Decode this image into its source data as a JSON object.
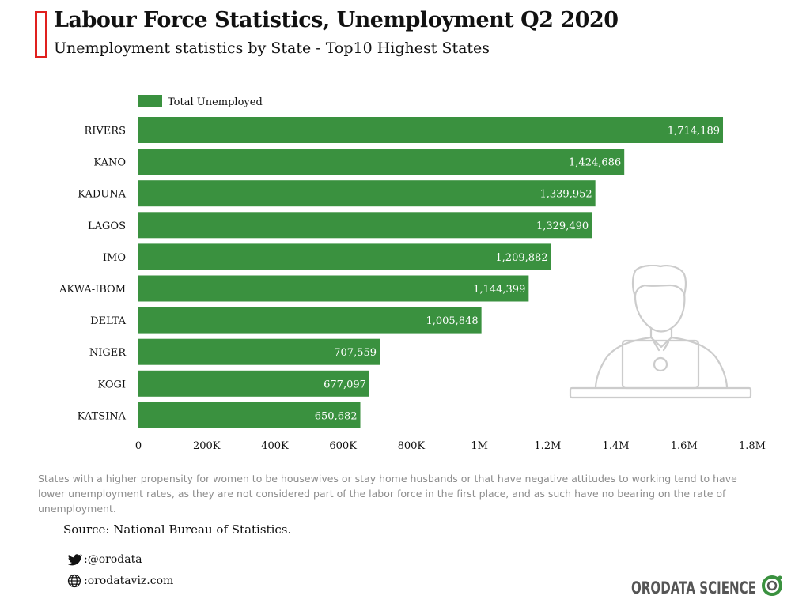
{
  "header": {
    "title": "Labour Force Statistics, Unemployment Q2 2020",
    "subtitle": "Unemployment statistics by State - Top10 Highest States"
  },
  "chart_data": {
    "type": "bar",
    "orientation": "horizontal",
    "categories": [
      "RIVERS",
      "KANO",
      "KADUNA",
      "LAGOS",
      "IMO",
      "AKWA-IBOM",
      "DELTA",
      "NIGER",
      "KOGI",
      "KATSINA"
    ],
    "series": [
      {
        "name": "Total Unemployed",
        "color": "#3a913f",
        "values": [
          1714189,
          1424686,
          1339952,
          1329490,
          1209882,
          1144399,
          1005848,
          707559,
          677097,
          650682
        ],
        "labels": [
          "1,714,189",
          "1,424,686",
          "1,339,952",
          "1,329,490",
          "1,209,882",
          "1,144,399",
          "1,005,848",
          "707,559",
          "677,097",
          "650,682"
        ]
      }
    ],
    "xlim": [
      0,
      1800000
    ],
    "xticks": [
      0,
      200000,
      400000,
      600000,
      800000,
      1000000,
      1200000,
      1400000,
      1600000,
      1800000
    ],
    "xtick_labels": [
      "0",
      "200K",
      "400K",
      "600K",
      "800K",
      "1M",
      "1.2M",
      "1.4M",
      "1.6M",
      "1.8M"
    ],
    "grid": false,
    "legend": "top-left",
    "xlabel": "",
    "ylabel": ""
  },
  "footer": {
    "note": "States with a higher propensity for women to be housewives or stay home husbands or that  have negative attitudes to working tend to have lower unemployment rates, as they are not considered part of the labor force in the first place, and as such have no bearing on the rate of unemployment.",
    "source": "Source: National Bureau of Statistics.",
    "twitter": ":@orodata",
    "website": ":orodataviz.com"
  },
  "brand": {
    "logo_text": "ORODATA SCIENCE",
    "accent_color": "#3a913f",
    "title_mark_color": "#e0201e"
  },
  "icons": {
    "twitter": "twitter-bird-icon",
    "website": "globe-icon",
    "illustration": "person-with-laptop-illustration"
  }
}
